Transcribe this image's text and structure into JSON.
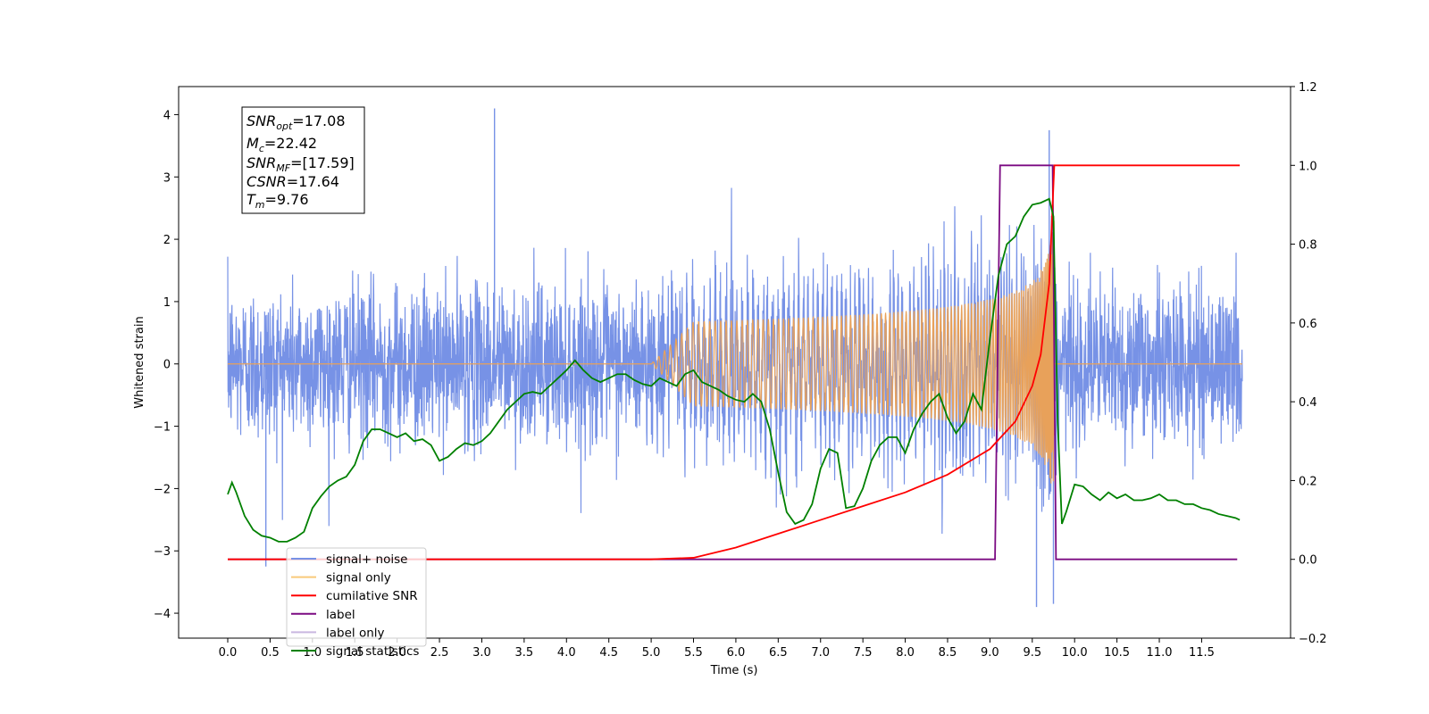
{
  "chart_data": {
    "type": "line",
    "xlabel": "Time (s)",
    "ylabel": "Whitened strain",
    "xlim": [
      -0.58,
      12.55
    ],
    "ylim": [
      -4.4,
      4.45
    ],
    "y2lim": [
      -0.2,
      1.2
    ],
    "grid": false,
    "legend_position": "bottom-left",
    "x_ticks": [
      "0.0",
      "0.5",
      "1.0",
      "1.5",
      "2.0",
      "2.5",
      "3.0",
      "3.5",
      "4.0",
      "4.5",
      "5.0",
      "5.5",
      "6.0",
      "6.5",
      "7.0",
      "7.5",
      "8.0",
      "8.5",
      "9.0",
      "9.5",
      "10.0",
      "10.5",
      "11.0",
      "11.5"
    ],
    "y_ticks": [
      "4",
      "3",
      "2",
      "1",
      "0",
      "−1",
      "−2",
      "−3",
      "−4"
    ],
    "y2_ticks": [
      "1.2",
      "1.0",
      "0.8",
      "0.6",
      "0.4",
      "0.2",
      "0.0",
      "−0.2"
    ],
    "info_box": {
      "snr_opt": {
        "base": "SNR",
        "sub": "opt",
        "rest": "=17.08"
      },
      "mc": {
        "base": "M",
        "sub": "c",
        "rest": "=22.42"
      },
      "snr_mf": {
        "base": "SNR",
        "sub": "MF",
        "rest": "=[17.59]"
      },
      "csnr": {
        "base": "CSNR",
        "rest": "=17.64"
      },
      "tm": {
        "base": "T",
        "sub": "m",
        "rest": "=9.76"
      }
    },
    "series": [
      {
        "name": "signal+ noise",
        "axis": "left",
        "color": "#7792e6",
        "note": "whitened noise with injected chirp; typical envelope about ±1.6, extremes 4.1 at t≈3.15 and −3.9 at t≈9.55",
        "peaks": [
          [
            3.15,
            4.1
          ],
          [
            9.55,
            -3.9
          ],
          [
            9.7,
            3.75
          ],
          [
            9.75,
            -3.85
          ],
          [
            0.45,
            -3.25
          ]
        ]
      },
      {
        "name": "signal only",
        "axis": "left",
        "color": "#e8a15a",
        "note": "chirp waveform growing from zero near t=5.0 to amplitude about 2.6 at merger t≈9.76, zero afterwards",
        "merger_time": 9.76,
        "peak_amplitude": 2.6
      },
      {
        "name": "cumilative SNR",
        "axis": "right",
        "color": "#ff0000",
        "x": [
          0.0,
          4.0,
          5.0,
          5.5,
          6.0,
          6.5,
          7.0,
          7.5,
          8.0,
          8.5,
          9.0,
          9.3,
          9.5,
          9.6,
          9.7,
          9.76,
          11.95
        ],
        "y": [
          0.0,
          0.0,
          0.0,
          0.004,
          0.03,
          0.065,
          0.1,
          0.135,
          0.17,
          0.215,
          0.28,
          0.35,
          0.44,
          0.52,
          0.7,
          1.0,
          1.0
        ]
      },
      {
        "name": "label",
        "axis": "right",
        "color": "#7b0a82",
        "x": [
          0.0,
          9.06,
          9.12,
          9.74,
          9.78,
          11.92
        ],
        "y": [
          0.0,
          0.0,
          1.0,
          1.0,
          0.0,
          0.0
        ]
      },
      {
        "name": "label only",
        "axis": "right",
        "color": "#c9b7e0",
        "x": [
          0.0,
          9.06,
          9.12,
          9.74,
          9.78,
          11.92
        ],
        "y": [
          0.0,
          0.0,
          1.0,
          1.0,
          0.0,
          0.0
        ]
      },
      {
        "name": "signal statistics",
        "axis": "right",
        "color": "#008000",
        "x": [
          0.0,
          0.05,
          0.1,
          0.2,
          0.3,
          0.4,
          0.5,
          0.6,
          0.7,
          0.8,
          0.9,
          1.0,
          1.1,
          1.2,
          1.3,
          1.4,
          1.5,
          1.6,
          1.7,
          1.8,
          1.9,
          2.0,
          2.1,
          2.2,
          2.3,
          2.4,
          2.5,
          2.6,
          2.7,
          2.8,
          2.9,
          3.0,
          3.1,
          3.2,
          3.3,
          3.4,
          3.5,
          3.6,
          3.7,
          3.8,
          3.9,
          4.0,
          4.1,
          4.2,
          4.3,
          4.4,
          4.5,
          4.6,
          4.7,
          4.8,
          4.9,
          5.0,
          5.1,
          5.2,
          5.3,
          5.4,
          5.5,
          5.6,
          5.7,
          5.8,
          5.9,
          6.0,
          6.1,
          6.2,
          6.3,
          6.4,
          6.5,
          6.6,
          6.7,
          6.8,
          6.9,
          7.0,
          7.1,
          7.2,
          7.3,
          7.4,
          7.5,
          7.6,
          7.7,
          7.8,
          7.9,
          8.0,
          8.1,
          8.2,
          8.3,
          8.4,
          8.5,
          8.6,
          8.7,
          8.8,
          8.9,
          9.0,
          9.1,
          9.2,
          9.3,
          9.4,
          9.5,
          9.6,
          9.7,
          9.75,
          9.8,
          9.85,
          9.9,
          10.0,
          10.1,
          10.2,
          10.3,
          10.4,
          10.5,
          10.6,
          10.7,
          10.8,
          10.9,
          11.0,
          11.1,
          11.2,
          11.3,
          11.4,
          11.5,
          11.6,
          11.7,
          11.8,
          11.9,
          11.95
        ],
        "y": [
          0.165,
          0.195,
          0.17,
          0.11,
          0.075,
          0.06,
          0.055,
          0.045,
          0.045,
          0.055,
          0.07,
          0.13,
          0.16,
          0.185,
          0.2,
          0.21,
          0.24,
          0.3,
          0.33,
          0.33,
          0.32,
          0.31,
          0.32,
          0.3,
          0.305,
          0.29,
          0.25,
          0.26,
          0.28,
          0.295,
          0.29,
          0.3,
          0.32,
          0.35,
          0.38,
          0.4,
          0.42,
          0.425,
          0.42,
          0.44,
          0.46,
          0.48,
          0.505,
          0.48,
          0.46,
          0.45,
          0.46,
          0.47,
          0.47,
          0.455,
          0.445,
          0.44,
          0.46,
          0.45,
          0.44,
          0.47,
          0.48,
          0.45,
          0.44,
          0.43,
          0.415,
          0.405,
          0.4,
          0.42,
          0.4,
          0.33,
          0.22,
          0.12,
          0.09,
          0.1,
          0.14,
          0.23,
          0.28,
          0.27,
          0.13,
          0.135,
          0.18,
          0.25,
          0.29,
          0.31,
          0.31,
          0.27,
          0.33,
          0.37,
          0.4,
          0.42,
          0.36,
          0.32,
          0.35,
          0.42,
          0.38,
          0.56,
          0.72,
          0.8,
          0.82,
          0.87,
          0.9,
          0.905,
          0.915,
          0.87,
          0.35,
          0.09,
          0.12,
          0.19,
          0.185,
          0.165,
          0.15,
          0.17,
          0.155,
          0.165,
          0.15,
          0.15,
          0.155,
          0.165,
          0.15,
          0.15,
          0.14,
          0.14,
          0.13,
          0.125,
          0.115,
          0.11,
          0.105,
          0.1
        ]
      }
    ],
    "legend": [
      {
        "label": "signal+ noise",
        "color": "#7792e6"
      },
      {
        "label": "signal only",
        "color": "#f9c97a"
      },
      {
        "label": "cumilative SNR",
        "color": "#ff0000"
      },
      {
        "label": "label",
        "color": "#7b0a82"
      },
      {
        "label": "label only",
        "color": "#c9b7e0"
      },
      {
        "label": "signal statistics",
        "color": "#008000"
      }
    ]
  }
}
